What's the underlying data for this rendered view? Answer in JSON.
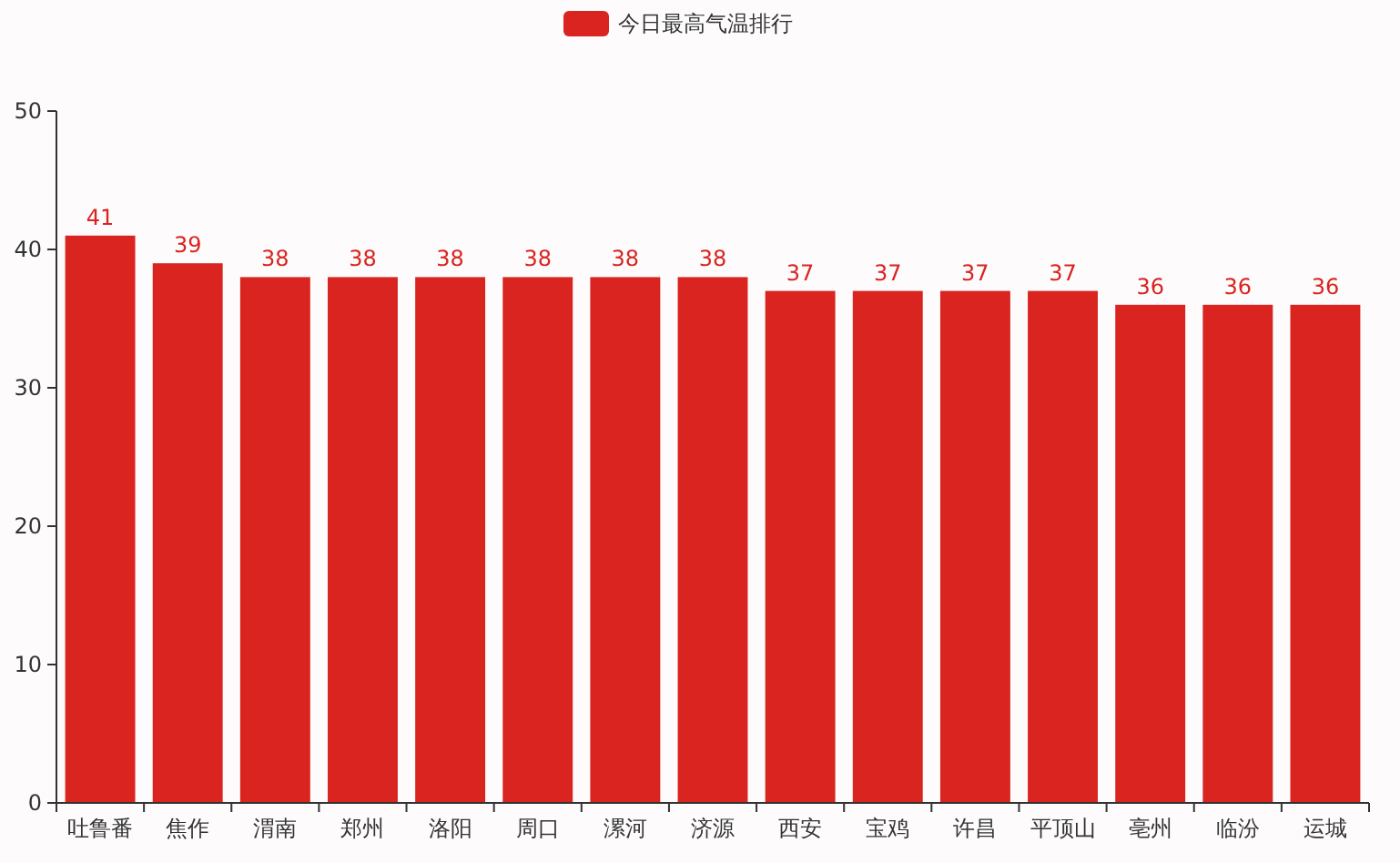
{
  "chart_data": {
    "type": "bar",
    "categories": [
      "吐鲁番",
      "焦作",
      "渭南",
      "郑州",
      "洛阳",
      "周口",
      "漯河",
      "济源",
      "西安",
      "宝鸡",
      "许昌",
      "平顶山",
      "亳州",
      "临汾",
      "运城"
    ],
    "series": [
      {
        "name": "今日最高气温排行",
        "color": "#d9241f",
        "values": [
          41,
          39,
          38,
          38,
          38,
          38,
          38,
          38,
          37,
          37,
          37,
          37,
          36,
          36,
          36
        ]
      }
    ],
    "ylim": [
      0,
      50
    ],
    "yticks": [
      0,
      10,
      20,
      30,
      40,
      50
    ],
    "data_labels": true,
    "legend": "top",
    "grid": false
  }
}
